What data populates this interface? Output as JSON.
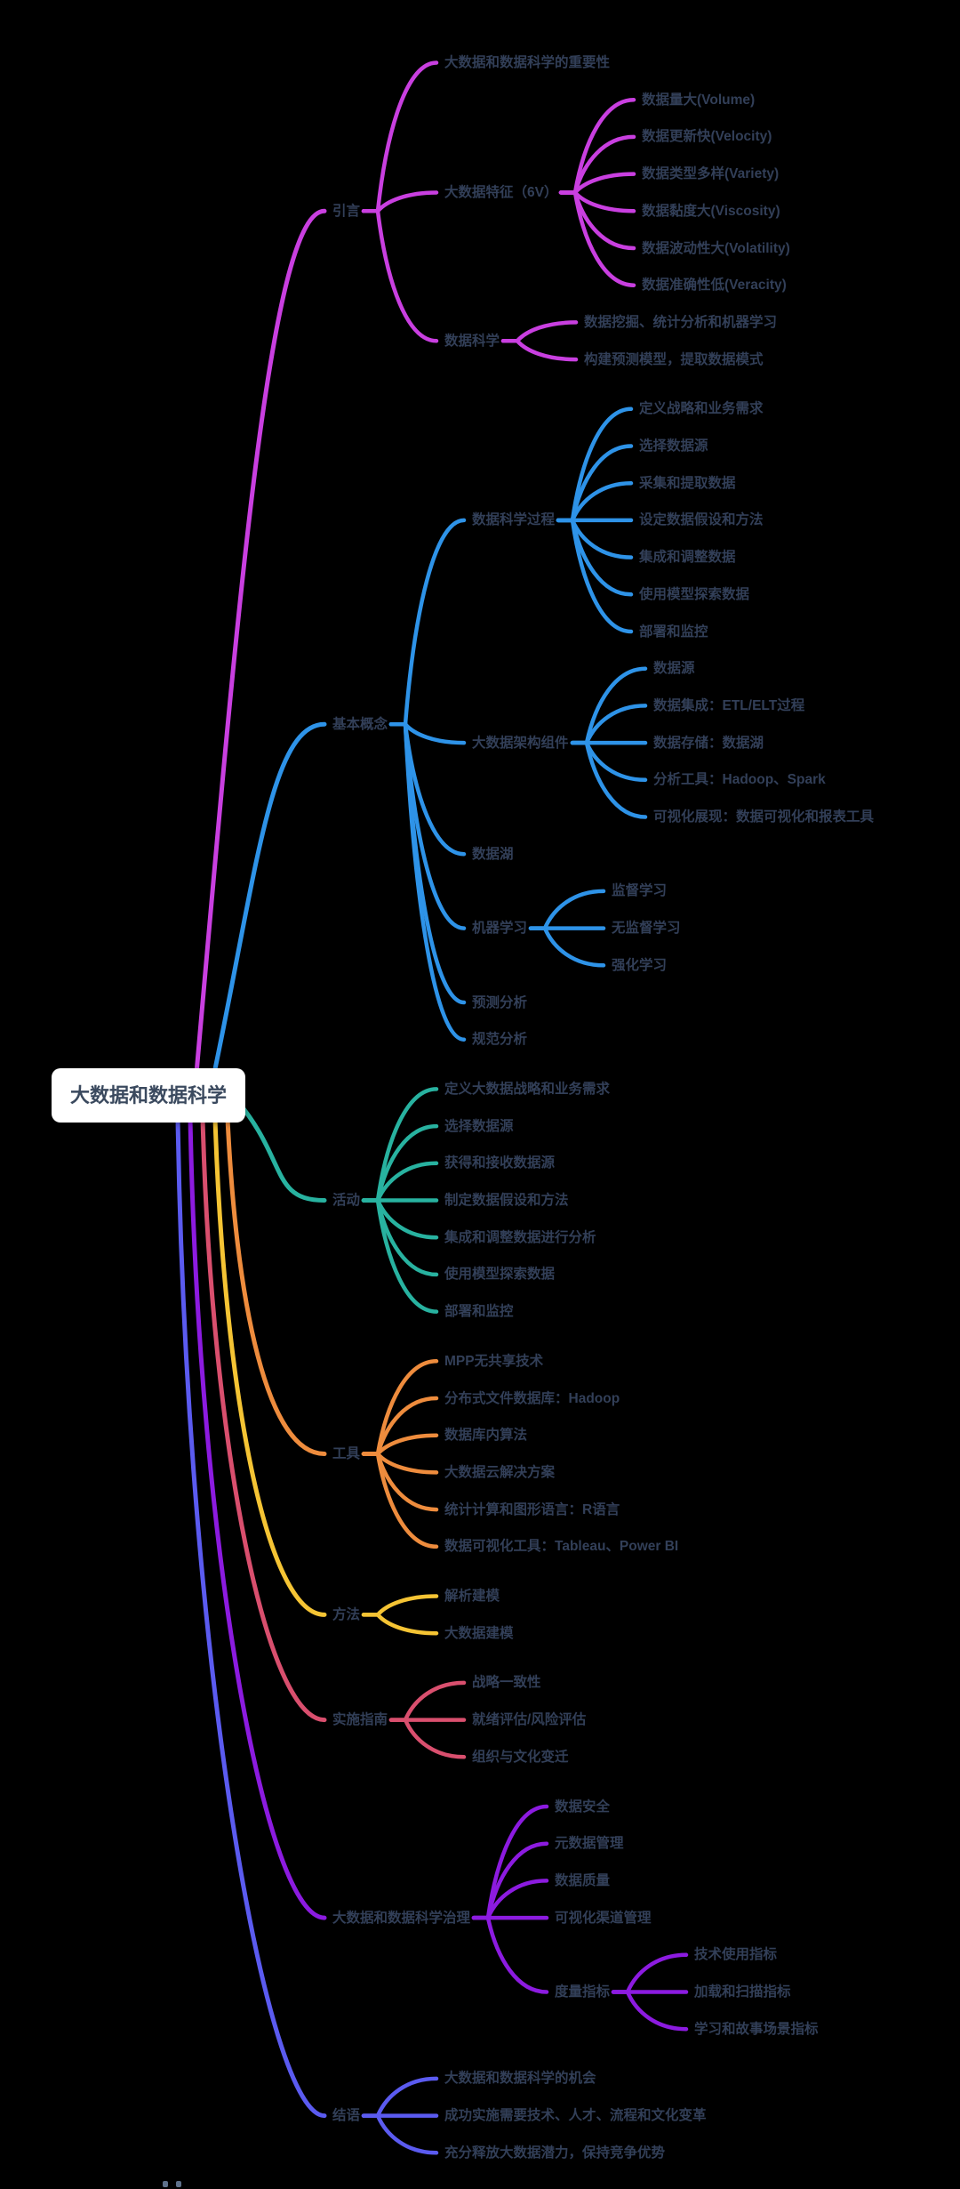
{
  "canvas": {
    "background_color": "#000000",
    "root_fill_color": "#FFFFFF",
    "text_color": "#323F58"
  },
  "mindmap": {
    "root": {
      "label": "大数据和数据科学"
    },
    "branches": [
      {
        "label": "引言",
        "color": "#C93FE0",
        "children": [
          {
            "label": "大数据和数据科学的重要性"
          },
          {
            "label": "大数据特征（6V）",
            "children": [
              {
                "label": "数据量大(Volume)"
              },
              {
                "label": "数据更新快(Velocity)"
              },
              {
                "label": "数据类型多样(Variety)"
              },
              {
                "label": "数据黏度大(Viscosity)"
              },
              {
                "label": "数据波动性大(Volatility)"
              },
              {
                "label": "数据准确性低(Veracity)"
              }
            ]
          },
          {
            "label": "数据科学",
            "children": [
              {
                "label": "数据挖掘、统计分析和机器学习"
              },
              {
                "label": "构建预测模型，提取数据模式"
              }
            ]
          }
        ]
      },
      {
        "label": "基本概念",
        "color": "#2E93E8",
        "children": [
          {
            "label": "数据科学过程",
            "children": [
              {
                "label": "定义战略和业务需求"
              },
              {
                "label": "选择数据源"
              },
              {
                "label": "采集和提取数据"
              },
              {
                "label": "设定数据假设和方法"
              },
              {
                "label": "集成和调整数据"
              },
              {
                "label": "使用模型探索数据"
              },
              {
                "label": "部署和监控"
              }
            ]
          },
          {
            "label": "大数据架构组件",
            "children": [
              {
                "label": "数据源"
              },
              {
                "label": "数据集成：ETL/ELT过程"
              },
              {
                "label": "数据存储：数据湖"
              },
              {
                "label": "分析工具：Hadoop、Spark"
              },
              {
                "label": "可视化展现：数据可视化和报表工具"
              }
            ]
          },
          {
            "label": "数据湖"
          },
          {
            "label": "机器学习",
            "children": [
              {
                "label": "监督学习"
              },
              {
                "label": "无监督学习"
              },
              {
                "label": "强化学习"
              }
            ]
          },
          {
            "label": "预测分析"
          },
          {
            "label": "规范分析"
          }
        ]
      },
      {
        "label": "活动",
        "color": "#28B2A0",
        "children": [
          {
            "label": "定义大数据战略和业务需求"
          },
          {
            "label": "选择数据源"
          },
          {
            "label": "获得和接收数据源"
          },
          {
            "label": "制定数据假设和方法"
          },
          {
            "label": "集成和调整数据进行分析"
          },
          {
            "label": "使用模型探索数据"
          },
          {
            "label": "部署和监控"
          }
        ]
      },
      {
        "label": "工具",
        "color": "#EE8C3D",
        "children": [
          {
            "label": "MPP无共享技术"
          },
          {
            "label": "分布式文件数据库：Hadoop"
          },
          {
            "label": "数据库内算法"
          },
          {
            "label": "大数据云解决方案"
          },
          {
            "label": "统计计算和图形语言：R语言"
          },
          {
            "label": "数据可视化工具：Tableau、Power BI"
          }
        ]
      },
      {
        "label": "方法",
        "color": "#F5C434",
        "children": [
          {
            "label": "解析建模"
          },
          {
            "label": "大数据建模"
          }
        ]
      },
      {
        "label": "实施指南",
        "color": "#D94F6E",
        "children": [
          {
            "label": "战略一致性"
          },
          {
            "label": "就绪评估/风险评估"
          },
          {
            "label": "组织与文化变迁"
          }
        ]
      },
      {
        "label": "大数据和数据科学治理",
        "color": "#8C1BE0",
        "children": [
          {
            "label": "数据安全"
          },
          {
            "label": "元数据管理"
          },
          {
            "label": "数据质量"
          },
          {
            "label": "可视化渠道管理"
          },
          {
            "label": "度量指标",
            "children": [
              {
                "label": "技术使用指标"
              },
              {
                "label": "加载和扫描指标"
              },
              {
                "label": "学习和故事场景指标"
              }
            ]
          }
        ]
      },
      {
        "label": "结语",
        "color": "#5B5BF0",
        "children": [
          {
            "label": "大数据和数据科学的机会"
          },
          {
            "label": "成功实施需要技术、人才、流程和文化变革"
          },
          {
            "label": "充分释放大数据潜力，保持竞争优势"
          }
        ]
      }
    ]
  }
}
